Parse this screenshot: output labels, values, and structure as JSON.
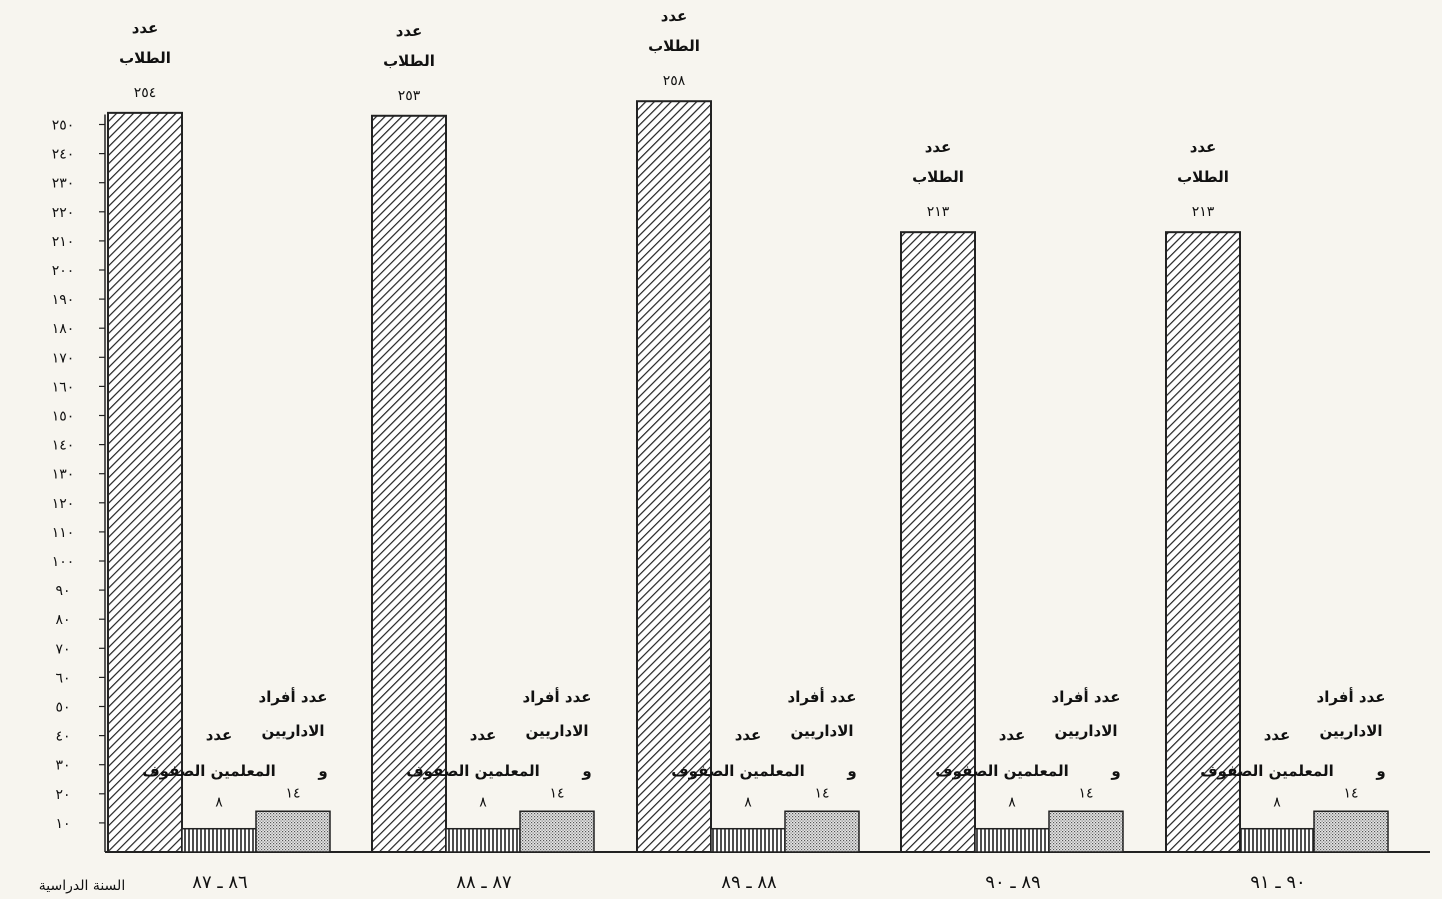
{
  "chart_data": {
    "type": "bar",
    "xlabel": "السنة الدراسية",
    "ylim": [
      0,
      250
    ],
    "y_ticks": [
      "١٠",
      "٢٠",
      "٣٠",
      "٤٠",
      "٥٠",
      "٦٠",
      "٧٠",
      "٨٠",
      "٩٠",
      "١٠٠",
      "١١٠",
      "١٢٠",
      "١٣٠",
      "١٤٠",
      "١٥٠",
      "١٦٠",
      "١٧٠",
      "١٨٠",
      "١٩٠",
      "٢٠٠",
      "٢١٠",
      "٢٢٠",
      "٢٣٠",
      "٢٤٠",
      "٢٥٠"
    ],
    "y_tick_values": [
      10,
      20,
      30,
      40,
      50,
      60,
      70,
      80,
      90,
      100,
      110,
      120,
      130,
      140,
      150,
      160,
      170,
      180,
      190,
      200,
      210,
      220,
      230,
      240,
      250
    ],
    "categories": [
      "٨٦ ـ ٨٧",
      "٨٧ ـ ٨٨",
      "٨٨ ـ ٨٩",
      "٨٩ ـ ٩٠",
      "٩٠ ـ ٩١"
    ],
    "series": [
      {
        "key": "students",
        "pattern": "diagonal-hatch",
        "label_lines": [
          "عدد",
          "الطلاب"
        ],
        "values": [
          254,
          253,
          258,
          213,
          213
        ],
        "value_labels": [
          "٢٥٤",
          "٢٥٣",
          "٢٥٨",
          "٢١٣",
          "٢١٣"
        ]
      },
      {
        "key": "teachers",
        "pattern": "vertical-lines",
        "label_lines": [
          "عدد",
          "المعلمين الصفوف"
        ],
        "values": [
          8,
          8,
          8,
          8,
          8
        ],
        "value_labels": [
          "٨",
          "٨",
          "٨",
          "٨",
          "٨"
        ]
      },
      {
        "key": "admins",
        "pattern": "dots",
        "label_lines": [
          "عدد أفراد",
          "الاداريين",
          "و"
        ],
        "values": [
          14,
          14,
          14,
          14,
          14
        ],
        "value_labels": [
          "١٤",
          "١٤",
          "١٤",
          "١٤",
          "١٤"
        ]
      }
    ]
  }
}
